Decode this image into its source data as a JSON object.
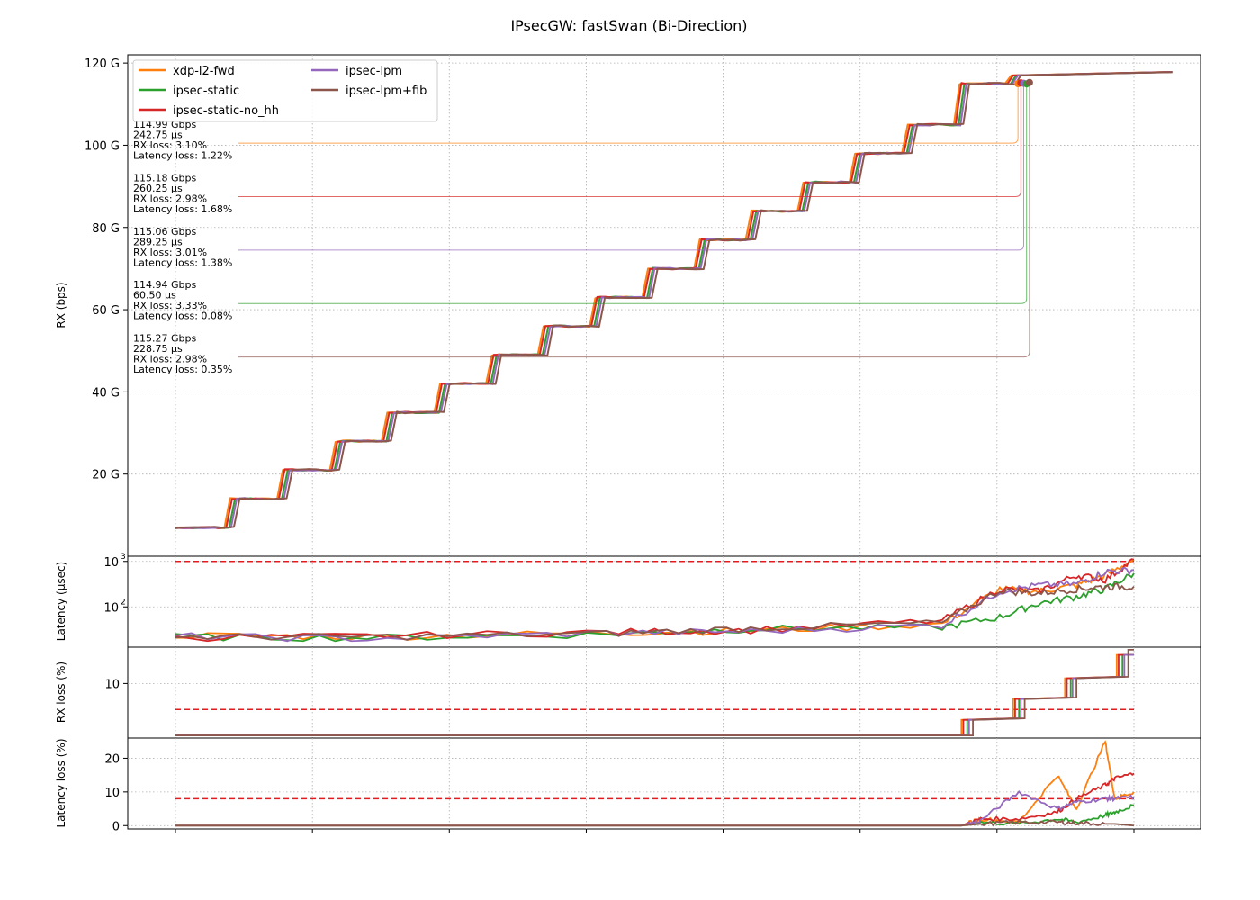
{
  "chart_data": {
    "type": "line",
    "title": "IPsecGW: fastSwan (Bi-Direction)",
    "grid": true,
    "legend": {
      "placement": "top-left",
      "entries": [
        "xdp-l2-fwd",
        "ipsec-static",
        "ipsec-static-no_hh",
        "ipsec-lpm",
        "ipsec-lpm+fib"
      ]
    },
    "series_colors": {
      "xdp-l2-fwd": "#ff7f0e",
      "ipsec-static": "#2ca02c",
      "ipsec-static-no_hh": "#d62728",
      "ipsec-lpm": "#9467bd",
      "ipsec-lpm+fib": "#8c564b"
    },
    "x": {
      "range": [
        0,
        100
      ],
      "tick_positions": [
        0,
        14.29,
        28.57,
        42.86,
        57.14,
        71.43,
        85.71,
        100
      ],
      "tick_labels": []
    },
    "panels": {
      "rx": {
        "ylabel": "RX (bps)",
        "ylim": [
          0,
          122
        ],
        "unit": "G",
        "tick_values": [
          20,
          40,
          60,
          80,
          100,
          120
        ],
        "tick_labels": [
          "20 G",
          "40 G",
          "60 G",
          "80 G",
          "100 G",
          "120 G"
        ],
        "staircase": {
          "levels": [
            7,
            14,
            21,
            28,
            35,
            42,
            49,
            56,
            63,
            70,
            77,
            84,
            91,
            98,
            105,
            115,
            117
          ],
          "step_x": [
            5.5,
            11,
            16.5,
            21.9,
            27.4,
            32.8,
            38.2,
            43.6,
            49.1,
            54.5,
            59.9,
            65.3,
            70.7,
            76.2,
            81.6,
            87.0
          ],
          "end_x": 104
        },
        "series_offsets": {
          "xdp-l2-fwd": -0.4,
          "ipsec-static": 0.1,
          "ipsec-static-no_hh": -0.2,
          "ipsec-lpm": 0.3,
          "ipsec-lpm+fib": 0.6
        },
        "annotations": [
          {
            "series": "xdp-l2-fwd",
            "throughput": "114.99 Gbps",
            "latency": "242.75 µs",
            "rx_loss": "RX loss: 3.10%",
            "latency_loss": "Latency loss: 1.22%",
            "y": 100.5,
            "peak_x": 87.9,
            "peak_y": 114.99
          },
          {
            "series": "ipsec-static-no_hh",
            "throughput": "115.18 Gbps",
            "latency": "260.25 µs",
            "rx_loss": "RX loss: 2.98%",
            "latency_loss": "Latency loss: 1.68%",
            "y": 87.5,
            "peak_x": 88.2,
            "peak_y": 115.18
          },
          {
            "series": "ipsec-lpm",
            "throughput": "115.06 Gbps",
            "latency": "289.25 µs",
            "rx_loss": "RX loss: 3.01%",
            "latency_loss": "Latency loss: 1.38%",
            "y": 74.5,
            "peak_x": 88.5,
            "peak_y": 115.06
          },
          {
            "series": "ipsec-static",
            "throughput": "114.94 Gbps",
            "latency": "60.50 µs",
            "rx_loss": "RX loss: 3.33%",
            "latency_loss": "Latency loss: 0.08%",
            "y": 61.5,
            "peak_x": 88.8,
            "peak_y": 114.94
          },
          {
            "series": "ipsec-lpm+fib",
            "throughput": "115.27 Gbps",
            "latency": "228.75 µs",
            "rx_loss": "RX loss: 2.98%",
            "latency_loss": "Latency loss: 0.35%",
            "y": 48.5,
            "peak_x": 89.1,
            "peak_y": 115.27
          }
        ]
      },
      "latency": {
        "ylabel": "Latency (µsec)",
        "scale": "log",
        "ylim": [
          13,
          1300
        ],
        "tick_values": [
          100,
          1000
        ],
        "tick_labels": [
          "10",
          "10"
        ],
        "tick_exponents": [
          "2",
          "3"
        ],
        "threshold": 1000,
        "series": {
          "xdp-l2-fwd": [
            [
              0,
              24
            ],
            [
              20,
              22
            ],
            [
              45,
              27
            ],
            [
              60,
              30
            ],
            [
              80,
              42
            ],
            [
              86,
              250
            ],
            [
              90,
              220
            ],
            [
              94,
              300
            ],
            [
              97,
              500
            ],
            [
              100,
              1100
            ]
          ],
          "ipsec-static": [
            [
              0,
              22
            ],
            [
              20,
              21
            ],
            [
              45,
              25
            ],
            [
              60,
              33
            ],
            [
              80,
              36
            ],
            [
              86,
              60
            ],
            [
              90,
              120
            ],
            [
              94,
              170
            ],
            [
              97,
              250
            ],
            [
              100,
              550
            ]
          ],
          "ipsec-static-no_hh": [
            [
              0,
              21
            ],
            [
              20,
              23
            ],
            [
              45,
              28
            ],
            [
              60,
              31
            ],
            [
              80,
              50
            ],
            [
              86,
              250
            ],
            [
              90,
              220
            ],
            [
              94,
              500
            ],
            [
              97,
              400
            ],
            [
              100,
              1100
            ]
          ],
          "ipsec-lpm": [
            [
              0,
              23
            ],
            [
              20,
              20
            ],
            [
              45,
              27
            ],
            [
              60,
              29
            ],
            [
              80,
              40
            ],
            [
              86,
              220
            ],
            [
              90,
              300
            ],
            [
              94,
              320
            ],
            [
              97,
              600
            ],
            [
              100,
              650
            ]
          ],
          "ipsec-lpm+fib": [
            [
              0,
              22
            ],
            [
              20,
              22
            ],
            [
              45,
              26
            ],
            [
              60,
              34
            ],
            [
              80,
              45
            ],
            [
              86,
              230
            ],
            [
              90,
              200
            ],
            [
              94,
              250
            ],
            [
              97,
              280
            ],
            [
              100,
              280
            ]
          ]
        }
      },
      "rx_loss": {
        "ylabel": "RX loss (%)",
        "ylim": [
          -0.5,
          17
        ],
        "tick_values": [
          10
        ],
        "tick_labels": [
          "10"
        ],
        "threshold": 5,
        "step_x": [
          82.4,
          87.8,
          93.2,
          98.6
        ],
        "step_values": [
          0,
          3,
          7,
          11,
          15.5
        ],
        "series_final": {
          "xdp-l2-fwd": 15.5,
          "ipsec-static": 15.5,
          "ipsec-static-no_hh": 15.5,
          "ipsec-lpm": 15.5,
          "ipsec-lpm+fib": 16.5
        },
        "series_shift": {
          "xdp-l2-fwd": -0.4,
          "ipsec-static": 0.2,
          "ipsec-static-no_hh": -0.2,
          "ipsec-lpm": 0.4,
          "ipsec-lpm+fib": 0.8
        }
      },
      "latency_loss": {
        "ylabel": "Latency loss (%)",
        "ylim": [
          -1,
          26
        ],
        "tick_values": [
          0,
          10,
          20
        ],
        "tick_labels": [
          "0",
          "10",
          "20"
        ],
        "threshold": 8,
        "series": {
          "xdp-l2-fwd": [
            [
              0,
              0
            ],
            [
              82,
              0
            ],
            [
              84,
              2
            ],
            [
              88,
              1
            ],
            [
              92,
              15
            ],
            [
              94,
              5
            ],
            [
              97,
              25
            ],
            [
              98,
              8
            ],
            [
              100,
              10
            ]
          ],
          "ipsec-static": [
            [
              0,
              0
            ],
            [
              82,
              0
            ],
            [
              84,
              1
            ],
            [
              88,
              0.5
            ],
            [
              92,
              2
            ],
            [
              94,
              1
            ],
            [
              97,
              3
            ],
            [
              98,
              4
            ],
            [
              100,
              6
            ]
          ],
          "ipsec-static-no_hh": [
            [
              0,
              0
            ],
            [
              82,
              0
            ],
            [
              84,
              2
            ],
            [
              88,
              2
            ],
            [
              92,
              4
            ],
            [
              94,
              8
            ],
            [
              97,
              12
            ],
            [
              98,
              14
            ],
            [
              100,
              15.5
            ]
          ],
          "ipsec-lpm": [
            [
              0,
              0
            ],
            [
              82,
              0
            ],
            [
              84,
              1.5
            ],
            [
              88,
              10
            ],
            [
              92,
              5
            ],
            [
              94,
              7
            ],
            [
              97,
              8
            ],
            [
              98,
              8
            ],
            [
              100,
              8.5
            ]
          ],
          "ipsec-lpm+fib": [
            [
              0,
              0
            ],
            [
              82,
              0
            ],
            [
              84,
              0.5
            ],
            [
              88,
              1
            ],
            [
              92,
              1
            ],
            [
              94,
              0.8
            ],
            [
              97,
              0.5
            ],
            [
              98,
              0.5
            ],
            [
              100,
              0
            ]
          ]
        }
      }
    }
  }
}
